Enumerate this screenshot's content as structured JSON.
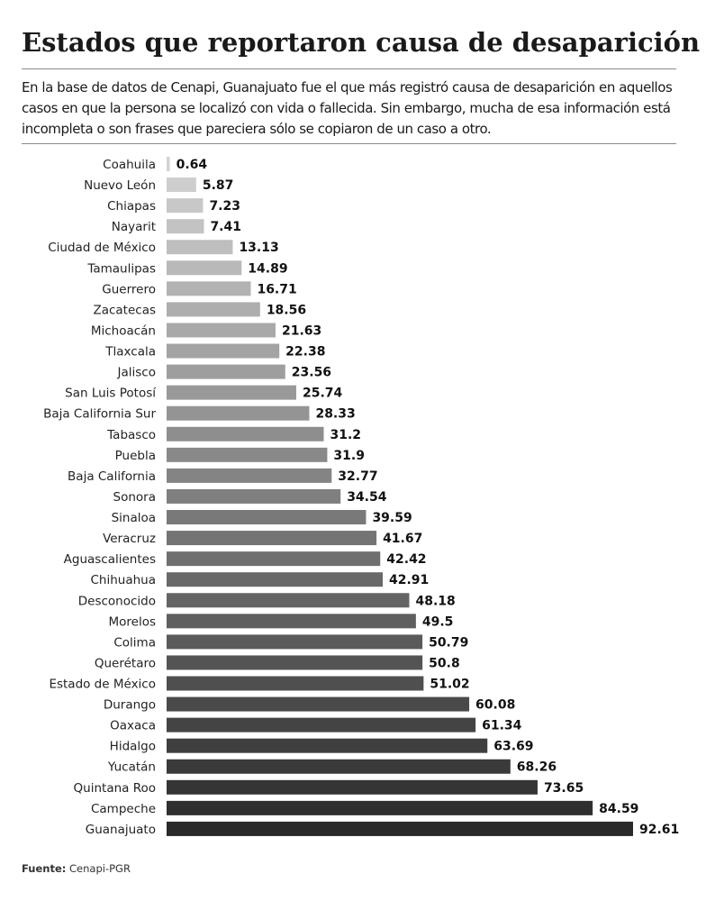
{
  "title": "Estados que reportaron causa de desaparición",
  "subtitle": "En la base de datos de Cenapi, Guanajuato fue el que más registró causa de desaparición en aquellos casos en que la persona se localizó con vida o fallecida. Sin embargo, mucha de esa información está incompleta o son frases que pareciera sólo se copiaron de un caso a otro.",
  "source": {
    "label": "Fuente:",
    "text": "Cenapi-PGR"
  },
  "chart_data": {
    "type": "bar",
    "orientation": "horizontal",
    "title": "",
    "xlabel": "",
    "ylabel": "",
    "xlim": [
      0,
      92.61
    ],
    "grid": false,
    "colors": {
      "lightest": "#d3d3d3",
      "darkest": "#2a2a2a"
    },
    "categories": [
      "Coahuila",
      "Nuevo León",
      "Chiapas",
      "Nayarit",
      "Ciudad de México",
      "Tamaulipas",
      "Guerrero",
      "Zacatecas",
      "Michoacán",
      "Tlaxcala",
      "Jalisco",
      "San Luis Potosí",
      "Baja California Sur",
      "Tabasco",
      "Puebla",
      "Baja California",
      "Sonora",
      "Sinaloa",
      "Veracruz",
      "Aguascalientes",
      "Chihuahua",
      "Desconocido",
      "Morelos",
      "Colima",
      "Querétaro",
      "Estado de México",
      "Durango",
      "Oaxaca",
      "Hidalgo",
      "Yucatán",
      "Quintana Roo",
      "Campeche",
      "Guanajuato"
    ],
    "values": [
      0.64,
      5.87,
      7.23,
      7.41,
      13.13,
      14.89,
      16.71,
      18.56,
      21.63,
      22.38,
      23.56,
      25.74,
      28.33,
      31.2,
      31.9,
      32.77,
      34.54,
      39.59,
      41.67,
      42.42,
      42.91,
      48.18,
      49.5,
      50.79,
      50.8,
      51.02,
      60.08,
      61.34,
      63.69,
      68.26,
      73.65,
      84.59,
      92.61
    ]
  }
}
